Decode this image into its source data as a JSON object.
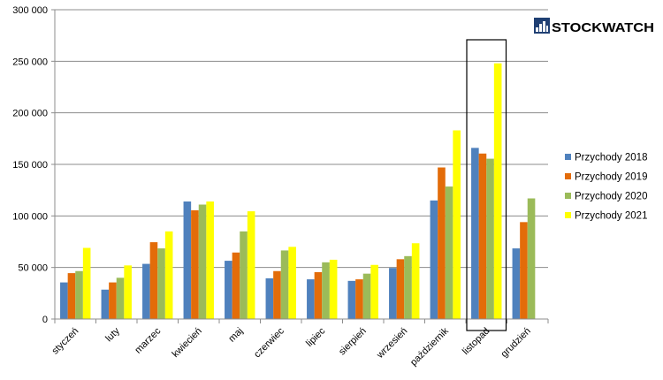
{
  "logo": {
    "text": "STOCKWATCH",
    "icon": "bar-chart-icon",
    "color": "#1f3f73"
  },
  "chart_data": {
    "type": "bar",
    "categories": [
      "styczeń",
      "luty",
      "marzec",
      "kwiecień",
      "maj",
      "czerwiec",
      "lipiec",
      "sierpień",
      "wrzesień",
      "październik",
      "listopad",
      "grudzień"
    ],
    "series": [
      {
        "name": "Przychody 2018",
        "color": "#4f81bd",
        "values": [
          35500,
          28500,
          53500,
          114000,
          56500,
          39500,
          38500,
          37000,
          49500,
          115000,
          166000,
          68500
        ]
      },
      {
        "name": "Przychody 2019",
        "color": "#e36c09",
        "values": [
          44500,
          35500,
          74500,
          105500,
          64500,
          46500,
          45500,
          38500,
          58000,
          147000,
          160500,
          94000
        ]
      },
      {
        "name": "Przychody 2020",
        "color": "#9bbb59",
        "values": [
          46500,
          40000,
          68500,
          111000,
          85000,
          66500,
          55000,
          44000,
          61000,
          128500,
          155500,
          117000
        ]
      },
      {
        "name": "Przychody 2021",
        "color": "#ffff00",
        "values": [
          69000,
          52000,
          85000,
          114000,
          104500,
          70000,
          57500,
          52500,
          73500,
          183000,
          248000,
          null
        ]
      }
    ],
    "yticks": [
      "0",
      "50 000",
      "100 000",
      "150 000",
      "200 000",
      "250 000",
      "300 000"
    ],
    "ylim": [
      0,
      300000
    ],
    "grid": true,
    "legend": "right",
    "highlighted_category": "listopad"
  }
}
